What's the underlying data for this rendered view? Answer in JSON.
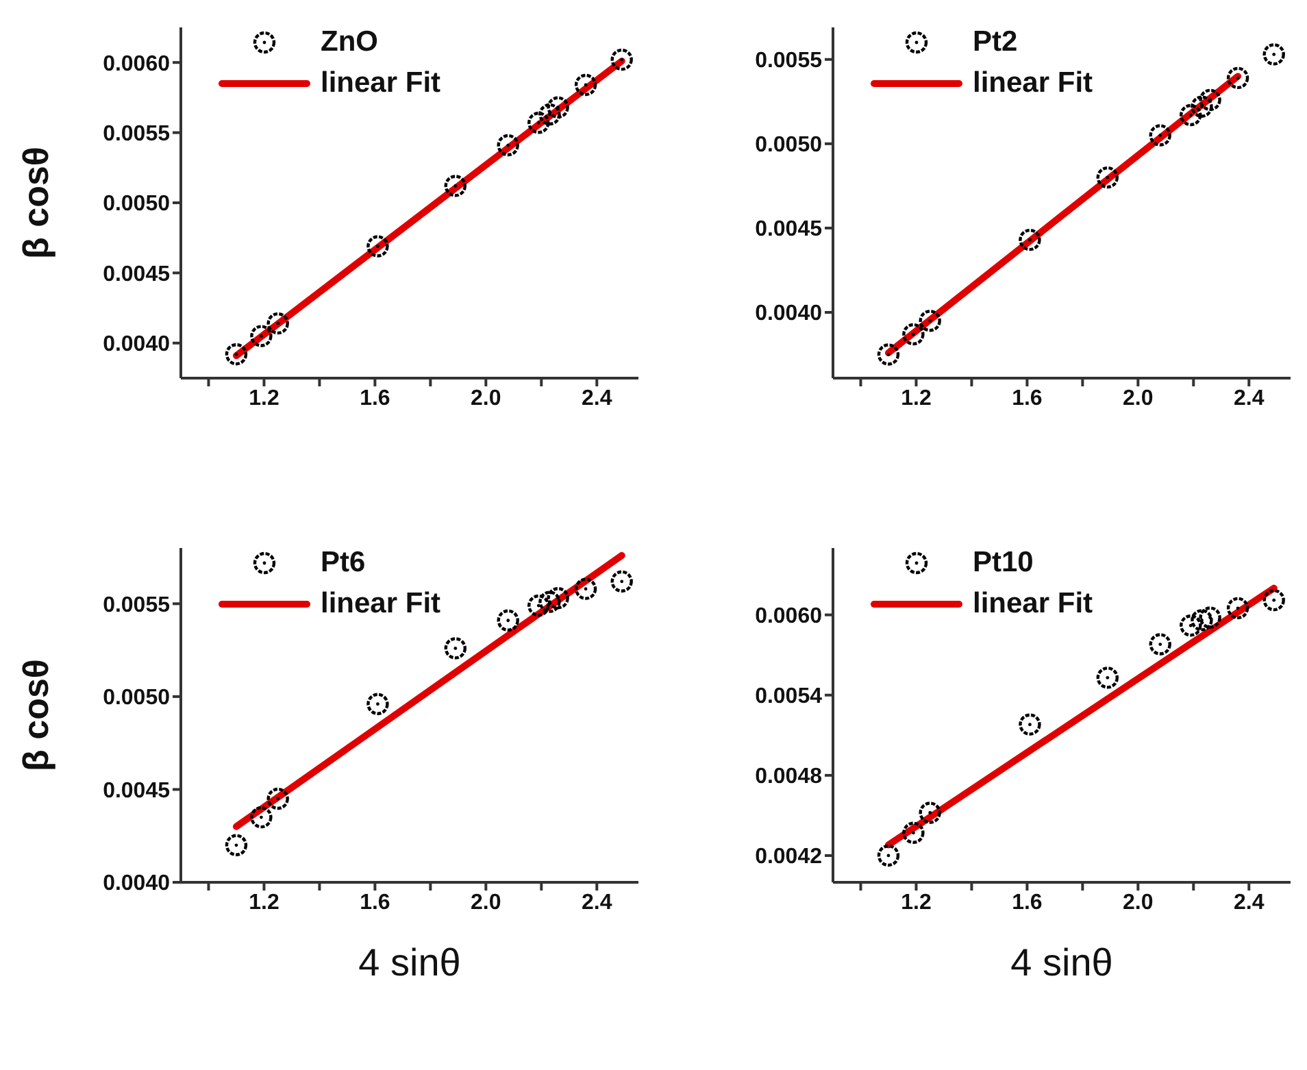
{
  "chart_data": [
    {
      "type": "scatter",
      "ylabel": "β cosθ",
      "xlim": [
        0.9,
        2.55
      ],
      "xticks": [
        {
          "value": 1.0,
          "label": null
        },
        {
          "value": 1.2,
          "label": "1.2"
        },
        {
          "value": 1.4,
          "label": null
        },
        {
          "value": 1.6,
          "label": "1.6"
        },
        {
          "value": 1.8,
          "label": null
        },
        {
          "value": 2.0,
          "label": "2.0"
        },
        {
          "value": 2.2,
          "label": null
        },
        {
          "value": 2.4,
          "label": "2.4"
        }
      ],
      "ylim": [
        0.00375,
        0.00625
      ],
      "yticks": [
        {
          "value": 0.004,
          "label": "0.0040"
        },
        {
          "value": 0.0045,
          "label": "0.0045"
        },
        {
          "value": 0.005,
          "label": "0.0050"
        },
        {
          "value": 0.0055,
          "label": "0.0055"
        },
        {
          "value": 0.006,
          "label": "0.0060"
        }
      ],
      "legend": "top left",
      "x": [
        1.1,
        1.19,
        1.25,
        1.61,
        1.89,
        2.08,
        2.19,
        2.23,
        2.26,
        2.36,
        2.49
      ],
      "series": [
        {
          "name": "ZnO",
          "marker": "circle",
          "color": "#000000",
          "values": [
            0.00392,
            0.00405,
            0.00414,
            0.00469,
            0.00512,
            0.00541,
            0.00557,
            0.00563,
            0.00568,
            0.00584,
            0.00602
          ]
        },
        {
          "name": "linear Fit",
          "type": "line",
          "marker": "none",
          "color": "#e00000",
          "x": [
            1.1,
            2.49
          ],
          "values": [
            0.00391,
            0.00601
          ]
        }
      ]
    },
    {
      "type": "scatter",
      "xlim": [
        0.9,
        2.55
      ],
      "xticks": [
        {
          "value": 1.0,
          "label": null
        },
        {
          "value": 1.2,
          "label": "1.2"
        },
        {
          "value": 1.4,
          "label": null
        },
        {
          "value": 1.6,
          "label": "1.6"
        },
        {
          "value": 1.8,
          "label": null
        },
        {
          "value": 2.0,
          "label": "2.0"
        },
        {
          "value": 2.2,
          "label": null
        },
        {
          "value": 2.4,
          "label": "2.4"
        }
      ],
      "ylim": [
        0.00361,
        0.00569
      ],
      "yticks": [
        {
          "value": 0.004,
          "label": "0.0040"
        },
        {
          "value": 0.0045,
          "label": "0.0045"
        },
        {
          "value": 0.005,
          "label": "0.0050"
        },
        {
          "value": 0.0055,
          "label": "0.0055"
        }
      ],
      "legend": "top left",
      "x": [
        1.1,
        1.19,
        1.25,
        1.61,
        1.89,
        2.08,
        2.19,
        2.23,
        2.26,
        2.36,
        2.49
      ],
      "series": [
        {
          "name": "Pt2",
          "marker": "circle",
          "color": "#000000",
          "values": [
            0.00375,
            0.00387,
            0.00395,
            0.00443,
            0.0048,
            0.00505,
            0.00517,
            0.00522,
            0.00526,
            0.00539,
            0.00553
          ]
        },
        {
          "name": "linear Fit",
          "type": "line",
          "marker": "none",
          "color": "#e00000",
          "x": [
            1.1,
            2.36
          ],
          "values": [
            0.00376,
            0.0054
          ]
        }
      ]
    },
    {
      "type": "scatter",
      "ylabel": "β cosθ",
      "xlabel": "4 sinθ",
      "xlim": [
        0.9,
        2.55
      ],
      "xticks": [
        {
          "value": 1.0,
          "label": null
        },
        {
          "value": 1.2,
          "label": "1.2"
        },
        {
          "value": 1.4,
          "label": null
        },
        {
          "value": 1.6,
          "label": "1.6"
        },
        {
          "value": 1.8,
          "label": null
        },
        {
          "value": 2.0,
          "label": "2.0"
        },
        {
          "value": 2.2,
          "label": null
        },
        {
          "value": 2.4,
          "label": "2.4"
        }
      ],
      "ylim": [
        0.004,
        0.0058
      ],
      "yticks": [
        {
          "value": 0.004,
          "label": "0.0040"
        },
        {
          "value": 0.0045,
          "label": "0.0045"
        },
        {
          "value": 0.005,
          "label": "0.0050"
        },
        {
          "value": 0.0055,
          "label": "0.0055"
        }
      ],
      "legend": "top left",
      "x": [
        1.1,
        1.19,
        1.25,
        1.61,
        1.89,
        2.08,
        2.19,
        2.23,
        2.26,
        2.36,
        2.49
      ],
      "series": [
        {
          "name": "Pt6",
          "marker": "circle",
          "color": "#000000",
          "values": [
            0.0042,
            0.00435,
            0.00445,
            0.00496,
            0.00526,
            0.00541,
            0.00549,
            0.00551,
            0.00553,
            0.00558,
            0.00562
          ]
        },
        {
          "name": "linear Fit",
          "type": "line",
          "marker": "none",
          "color": "#e00000",
          "x": [
            1.1,
            2.49
          ],
          "values": [
            0.0043,
            0.00576
          ]
        }
      ]
    },
    {
      "type": "scatter",
      "xlabel": "4 sinθ",
      "xlim": [
        0.9,
        2.55
      ],
      "xticks": [
        {
          "value": 1.0,
          "label": null
        },
        {
          "value": 1.2,
          "label": "1.2"
        },
        {
          "value": 1.4,
          "label": null
        },
        {
          "value": 1.6,
          "label": "1.6"
        },
        {
          "value": 1.8,
          "label": null
        },
        {
          "value": 2.0,
          "label": "2.0"
        },
        {
          "value": 2.2,
          "label": null
        },
        {
          "value": 2.4,
          "label": "2.4"
        }
      ],
      "ylim": [
        0.004,
        0.0065
      ],
      "yticks": [
        {
          "value": 0.0042,
          "label": "0.0042"
        },
        {
          "value": 0.0048,
          "label": "0.0048"
        },
        {
          "value": 0.0054,
          "label": "0.0054"
        },
        {
          "value": 0.006,
          "label": "0.0060"
        }
      ],
      "legend": "top left",
      "x": [
        1.1,
        1.19,
        1.25,
        1.61,
        1.89,
        2.08,
        2.19,
        2.23,
        2.26,
        2.36,
        2.49
      ],
      "series": [
        {
          "name": "Pt10",
          "marker": "circle",
          "color": "#000000",
          "values": [
            0.0042,
            0.00437,
            0.00452,
            0.00518,
            0.00553,
            0.00578,
            0.00592,
            0.00596,
            0.00598,
            0.00605,
            0.00611
          ]
        },
        {
          "name": "linear Fit",
          "type": "line",
          "marker": "none",
          "color": "#e00000",
          "x": [
            1.1,
            2.49
          ],
          "values": [
            0.00428,
            0.0062
          ]
        }
      ]
    }
  ]
}
